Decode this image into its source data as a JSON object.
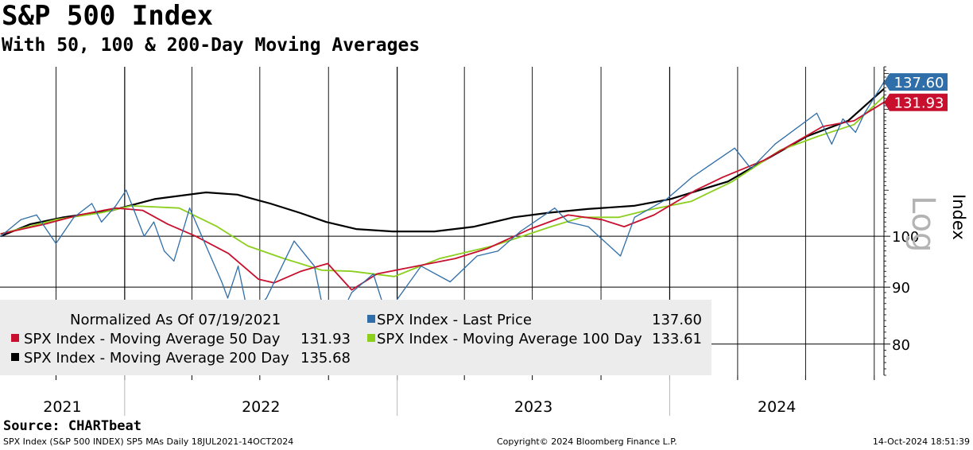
{
  "header": {
    "title": "S&P 500 Index",
    "subtitle": "With 50, 100 & 200-Day Moving Averages"
  },
  "footer": {
    "source": "Source: CHARTbeat",
    "left": "SPX Index (S&P 500 INDEX) SP5 MAs  Daily 18JUL2021-14OCT2024",
    "center": "Copyright© 2024 Bloomberg Finance L.P.",
    "right": "14-Oct-2024 18:51:39"
  },
  "colors": {
    "price": "#2f6ea8",
    "ma50": "#c8102e",
    "ma100": "#8ccf1d",
    "ma200": "#000000",
    "legend_bg": "#ececec"
  },
  "legend": {
    "normalized": "Normalized As Of 07/19/2021",
    "items": [
      {
        "label": "SPX Index - Last Price",
        "value": "137.60",
        "color": "#2f6ea8"
      },
      {
        "label": "SPX Index - Moving Average 50 Day",
        "value": "131.93",
        "color": "#c8102e"
      },
      {
        "label": "SPX Index - Moving Average 100 Day",
        "value": "133.61",
        "color": "#8ccf1d"
      },
      {
        "label": "SPX Index - Moving Average 200 Day",
        "value": "135.68",
        "color": "#000000"
      }
    ]
  },
  "chart_data": {
    "type": "line",
    "title": "S&P 500 Index",
    "subtitle": "With 50, 100 & 200-Day Moving Averages",
    "ylabel": "Index",
    "y_scale_label": "Log",
    "y_scale": "log",
    "ylim": [
      75,
      142
    ],
    "y_ticks": [
      80,
      90,
      100
    ],
    "x_year_labels": [
      "2021",
      "2022",
      "2023",
      "2024"
    ],
    "x_range": [
      "2021-07-18",
      "2024-10-14"
    ],
    "grid": "vertical quarter lines, horizontal at y ticks",
    "legend_position": "bottom-left",
    "last_values": [
      {
        "value": "137.60",
        "color": "#2f6ea8"
      },
      {
        "value": "131.93",
        "color": "#c8102e"
      }
    ],
    "series": [
      {
        "name": "SPX Index - Last Price",
        "color": "#2f6ea8",
        "x": [
          "2021-07-19",
          "2021-08-15",
          "2021-09-05",
          "2021-10-01",
          "2021-10-25",
          "2021-11-18",
          "2021-12-01",
          "2021-12-20",
          "2022-01-03",
          "2022-01-27",
          "2022-02-09",
          "2022-02-23",
          "2022-03-08",
          "2022-03-29",
          "2022-04-20",
          "2022-05-11",
          "2022-05-19",
          "2022-06-02",
          "2022-06-16",
          "2022-07-10",
          "2022-08-16",
          "2022-09-12",
          "2022-09-30",
          "2022-10-12",
          "2022-11-01",
          "2022-11-30",
          "2022-12-15",
          "2022-12-28",
          "2023-02-02",
          "2023-03-13",
          "2023-04-18",
          "2023-05-16",
          "2023-06-15",
          "2023-07-31",
          "2023-08-18",
          "2023-09-14",
          "2023-10-27",
          "2023-11-15",
          "2023-12-28",
          "2024-01-31",
          "2024-03-28",
          "2024-04-19",
          "2024-05-21",
          "2024-07-16",
          "2024-08-05",
          "2024-08-20",
          "2024-09-06",
          "2024-09-18",
          "2024-10-14"
        ],
        "y": [
          100,
          103.5,
          104.5,
          98.5,
          104,
          107,
          103,
          106.5,
          110,
          100,
          103,
          97,
          95,
          106,
          98,
          91,
          88,
          94,
          84.5,
          88,
          99,
          94,
          82,
          83.5,
          89,
          92.5,
          86,
          87,
          94,
          91,
          96,
          97,
          101,
          106,
          103,
          102,
          96,
          104,
          108,
          113,
          120,
          115,
          121,
          129,
          121,
          127.5,
          124,
          129,
          137.6
        ]
      },
      {
        "name": "SPX Index - Moving Average 50 Day",
        "color": "#c8102e",
        "x": [
          "2021-07-19",
          "2021-09-15",
          "2021-11-01",
          "2021-12-20",
          "2022-01-25",
          "2022-02-28",
          "2022-04-06",
          "2022-05-20",
          "2022-06-29",
          "2022-07-20",
          "2022-08-25",
          "2022-09-30",
          "2022-11-01",
          "2022-12-05",
          "2023-01-27",
          "2023-03-20",
          "2023-05-02",
          "2023-06-28",
          "2023-08-18",
          "2023-10-02",
          "2023-11-01",
          "2023-12-11",
          "2024-02-05",
          "2024-03-12",
          "2024-05-06",
          "2024-07-24",
          "2024-09-04",
          "2024-10-14"
        ],
        "y": [
          100.5,
          102.5,
          104.5,
          106,
          105.5,
          102.5,
          100,
          96.5,
          91.5,
          90.8,
          93,
          94.5,
          89.5,
          92.5,
          94,
          95.5,
          97.5,
          101.5,
          104.5,
          103.5,
          102,
          104.5,
          110,
          113,
          117,
          125.5,
          127,
          131.93
        ]
      },
      {
        "name": "SPX Index - Moving Average 100 Day",
        "color": "#8ccf1d",
        "x": [
          "2021-07-19",
          "2021-10-01",
          "2021-12-01",
          "2022-01-10",
          "2022-03-15",
          "2022-05-05",
          "2022-06-15",
          "2022-08-02",
          "2022-09-22",
          "2022-11-01",
          "2022-12-28",
          "2023-02-27",
          "2023-05-09",
          "2023-07-26",
          "2023-09-05",
          "2023-10-25",
          "2023-12-01",
          "2024-01-30",
          "2024-03-25",
          "2024-05-28",
          "2024-07-18",
          "2024-09-04",
          "2024-10-14"
        ],
        "y": [
          100.5,
          103.5,
          105,
          106.5,
          106,
          102,
          98,
          95.5,
          93.2,
          93,
          92,
          95.5,
          98,
          102,
          104,
          104,
          105.5,
          107.5,
          112,
          119.5,
          123,
          126,
          133.61
        ]
      },
      {
        "name": "SPX Index - Moving Average 200 Day",
        "color": "#000000",
        "x": [
          "2021-07-19",
          "2021-08-27",
          "2021-10-11",
          "2021-12-15",
          "2022-02-10",
          "2022-04-20",
          "2022-06-01",
          "2022-07-15",
          "2022-08-23",
          "2022-09-28",
          "2022-11-07",
          "2022-12-26",
          "2023-02-20",
          "2023-04-14",
          "2023-06-06",
          "2023-07-24",
          "2023-09-13",
          "2023-11-14",
          "2024-01-02",
          "2024-03-19",
          "2024-05-07",
          "2024-07-03",
          "2024-08-27",
          "2024-10-14"
        ],
        "y": [
          100,
          102.5,
          104,
          105.5,
          108,
          109.5,
          109,
          107,
          105,
          103,
          101.5,
          101,
          101,
          102,
          104,
          105,
          105.8,
          106.5,
          108,
          112,
          117,
          123,
          127,
          135.68
        ]
      }
    ]
  }
}
